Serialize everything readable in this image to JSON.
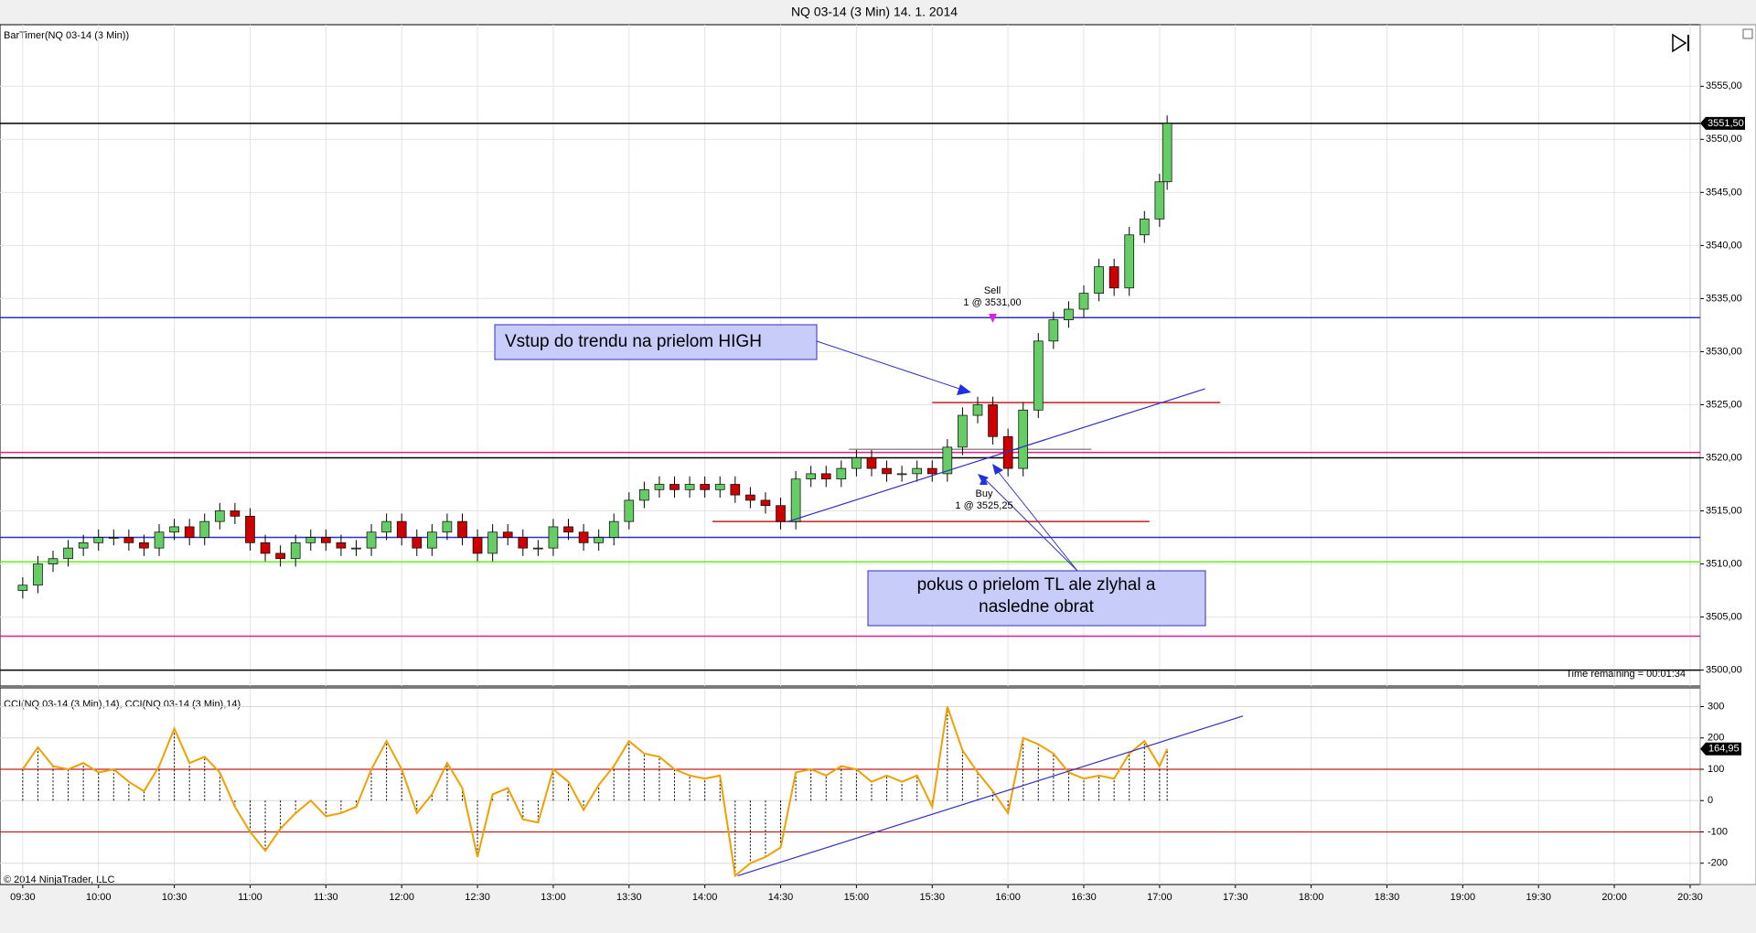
{
  "chart_data": {
    "type": "candlestick",
    "title": "NQ 03-14 (3 Min)  14. 1. 2014",
    "indicator_label": "BarTimer(NQ 03-14 (3 Min))",
    "time_remaining": "Time remaining = 00:01:34",
    "cci_label": "CCI(NQ 03-14 (3 Min),14), CCI(NQ 03-14 (3 Min),14)",
    "copyright": "© 2014 NinjaTrader, LLC",
    "up_color": "#66cc66",
    "down_color": "#cc0000",
    "x": [
      570,
      576,
      582,
      588,
      594,
      600,
      606,
      612,
      618,
      624,
      630,
      636,
      642,
      648,
      654,
      660,
      666,
      672,
      678,
      684,
      690,
      696,
      702,
      708,
      714,
      720,
      726,
      732,
      738,
      744,
      750,
      756,
      762,
      768,
      774,
      780,
      786,
      792,
      798,
      804,
      810,
      816,
      822,
      828,
      834,
      840,
      846,
      852,
      858,
      864,
      870,
      876,
      882,
      888,
      894,
      900,
      906,
      912,
      918,
      924,
      930,
      936,
      942,
      948,
      954,
      960,
      966,
      972,
      978,
      984,
      990,
      996,
      1002,
      1008,
      1014,
      1020,
      1023
    ],
    "open": [
      3507.5,
      3508,
      3510,
      3510.5,
      3511.5,
      3512,
      3512.5,
      3512.5,
      3512,
      3511.5,
      3513,
      3513.5,
      3512.5,
      3514,
      3515,
      3514.5,
      3512,
      3511,
      3510.5,
      3512,
      3512.5,
      3512,
      3511.5,
      3511.5,
      3513,
      3514,
      3512.5,
      3511.5,
      3513,
      3514,
      3512.5,
      3511,
      3513,
      3512.5,
      3511.5,
      3511.5,
      3513.5,
      3513,
      3512,
      3512.5,
      3514,
      3516,
      3517,
      3517.5,
      3517,
      3517.5,
      3517,
      3517.5,
      3516.5,
      3516,
      3515.5,
      3514,
      3518,
      3518.5,
      3518,
      3519,
      3520,
      3519,
      3518.5,
      3518.5,
      3519,
      3518.5,
      3521,
      3524,
      3525,
      3522,
      3519,
      3524.5,
      3531,
      3533,
      3534,
      3535.5,
      3538,
      3536,
      3541,
      3542.5,
      3546
    ],
    "high": [
      3508.75,
      3510.75,
      3511.25,
      3512.25,
      3512.75,
      3513.25,
      3513.25,
      3513.25,
      3512.75,
      3513.75,
      3514.25,
      3514.25,
      3514.75,
      3515.75,
      3515.75,
      3515.25,
      3512.75,
      3511.75,
      3512.75,
      3513.25,
      3513.25,
      3512.75,
      3512.25,
      3513.75,
      3514.75,
      3514.75,
      3513.25,
      3513.75,
      3514.75,
      3514.75,
      3513.25,
      3513.75,
      3513.75,
      3513.25,
      3512.25,
      3514.25,
      3514.25,
      3513.75,
      3513.25,
      3514.75,
      3516.75,
      3517.75,
      3518.25,
      3518.25,
      3518.25,
      3518.25,
      3518.25,
      3518.25,
      3517.25,
      3516.75,
      3516.25,
      3518.75,
      3519.25,
      3519.25,
      3519.75,
      3520.75,
      3520.75,
      3519.75,
      3519.25,
      3519.75,
      3519.75,
      3521.75,
      3524.75,
      3525.75,
      3525.75,
      3522.75,
      3525.25,
      3531.75,
      3533.75,
      3534.75,
      3536.25,
      3538.75,
      3538.75,
      3541.75,
      3543.25,
      3546.75,
      3552.25
    ],
    "low": [
      3506.75,
      3507.25,
      3509.25,
      3509.75,
      3510.75,
      3511.25,
      3511.75,
      3511.25,
      3510.75,
      3510.75,
      3512.25,
      3511.75,
      3511.75,
      3513.25,
      3513.75,
      3511.25,
      3510.25,
      3509.75,
      3509.75,
      3511.25,
      3511.25,
      3510.75,
      3510.75,
      3510.75,
      3512.25,
      3511.75,
      3510.75,
      3510.75,
      3512.25,
      3511.75,
      3510.25,
      3510.25,
      3511.75,
      3510.75,
      3510.75,
      3510.75,
      3512.25,
      3511.25,
      3511.25,
      3511.75,
      3513.25,
      3515.25,
      3516.25,
      3516.25,
      3516.25,
      3516.25,
      3516.25,
      3515.75,
      3515.25,
      3514.75,
      3513.25,
      3513.25,
      3517.25,
      3517.25,
      3517.25,
      3518.25,
      3518.25,
      3517.75,
      3517.75,
      3517.75,
      3517.75,
      3517.75,
      3520.25,
      3523.25,
      3521.25,
      3518.25,
      3518.25,
      3523.75,
      3530.25,
      3532.25,
      3533.25,
      3534.75,
      3535.25,
      3535.25,
      3540.25,
      3541.75,
      3545.25
    ],
    "close": [
      3508,
      3510,
      3510.5,
      3511.5,
      3512,
      3512.5,
      3512.5,
      3512,
      3511.5,
      3513,
      3513.5,
      3512.5,
      3514,
      3515,
      3514.5,
      3512,
      3511,
      3510.5,
      3512,
      3512.5,
      3512,
      3511.5,
      3511.5,
      3513,
      3514,
      3512.5,
      3511.5,
      3513,
      3514,
      3512.5,
      3511,
      3513,
      3512.5,
      3511.5,
      3511.5,
      3513.5,
      3513,
      3512,
      3512.5,
      3514,
      3516,
      3517,
      3517.5,
      3517,
      3517.5,
      3517,
      3517.5,
      3516.5,
      3516,
      3515.5,
      3514,
      3518,
      3518.5,
      3518,
      3519,
      3520,
      3519,
      3518.5,
      3518.5,
      3519,
      3518.5,
      3521,
      3524,
      3525,
      3522,
      3519,
      3524.5,
      3531,
      3533,
      3534,
      3535.5,
      3538,
      3536,
      3541,
      3542.5,
      3546,
      3551.5
    ],
    "cci": [
      100,
      170,
      110,
      100,
      120,
      90,
      100,
      60,
      30,
      110,
      230,
      120,
      140,
      90,
      -20,
      -100,
      -160,
      -90,
      -40,
      0,
      -50,
      -40,
      -20,
      100,
      190,
      100,
      -40,
      20,
      120,
      40,
      -180,
      20,
      40,
      -60,
      -70,
      100,
      60,
      -30,
      50,
      110,
      190,
      150,
      140,
      100,
      80,
      70,
      80,
      -240,
      -200,
      -180,
      -150,
      90,
      100,
      80,
      110,
      100,
      60,
      80,
      60,
      80,
      -20,
      300,
      160,
      90,
      30,
      -40,
      200,
      180,
      150,
      90,
      70,
      80,
      70,
      150,
      190,
      110,
      164.95
    ],
    "cci_color": "#f0a000",
    "xlim": [
      561,
      1234
    ],
    "xticks": [
      {
        "value": 570,
        "label": "09:30"
      },
      {
        "value": 600,
        "label": "10:00"
      },
      {
        "value": 630,
        "label": "10:30"
      },
      {
        "value": 660,
        "label": "11:00"
      },
      {
        "value": 690,
        "label": "11:30"
      },
      {
        "value": 720,
        "label": "12:00"
      },
      {
        "value": 750,
        "label": "12:30"
      },
      {
        "value": 780,
        "label": "13:00"
      },
      {
        "value": 810,
        "label": "13:30"
      },
      {
        "value": 840,
        "label": "14:00"
      },
      {
        "value": 870,
        "label": "14:30"
      },
      {
        "value": 900,
        "label": "15:00"
      },
      {
        "value": 930,
        "label": "15:30"
      },
      {
        "value": 960,
        "label": "16:00"
      },
      {
        "value": 990,
        "label": "16:30"
      },
      {
        "value": 1020,
        "label": "17:00"
      },
      {
        "value": 1050,
        "label": "17:30"
      },
      {
        "value": 1080,
        "label": "18:00"
      },
      {
        "value": 1110,
        "label": "18:30"
      },
      {
        "value": 1140,
        "label": "19:00"
      },
      {
        "value": 1170,
        "label": "19:30"
      },
      {
        "value": 1200,
        "label": "20:00"
      },
      {
        "value": 1230,
        "label": "20:30"
      }
    ],
    "ylim": [
      3498.5,
      3560.8
    ],
    "yticks": [
      {
        "value": 3500,
        "label": "3500,00"
      },
      {
        "value": 3505,
        "label": "3505,00"
      },
      {
        "value": 3510,
        "label": "3510,00"
      },
      {
        "value": 3515,
        "label": "3515,00"
      },
      {
        "value": 3520,
        "label": "3520,00"
      },
      {
        "value": 3525,
        "label": "3525,00"
      },
      {
        "value": 3530,
        "label": "3530,00"
      },
      {
        "value": 3535,
        "label": "3535,00"
      },
      {
        "value": 3540,
        "label": "3540,00"
      },
      {
        "value": 3545,
        "label": "3545,00"
      },
      {
        "value": 3550,
        "label": "3550,00"
      },
      {
        "value": 3555,
        "label": "3555,00"
      }
    ],
    "y2lim": [
      -268,
      357
    ],
    "y2ticks": [
      -200,
      -100,
      0,
      100,
      200,
      300
    ],
    "last_price": {
      "value": 3551.5,
      "label": "3551,50"
    },
    "last_cci": {
      "value": 164.95,
      "label": "164,95"
    },
    "hlines": [
      {
        "value": 3551.5,
        "color": "#000000"
      },
      {
        "value": 3533.2,
        "color": "#3030c0"
      },
      {
        "value": 3520.5,
        "color": "#e0208a"
      },
      {
        "value": 3520,
        "color": "#000000"
      },
      {
        "value": 3512.5,
        "color": "#3030c0"
      },
      {
        "value": 3510.2,
        "color": "#66ee22"
      },
      {
        "value": 3503.2,
        "color": "#e0208a"
      },
      {
        "value": 3500,
        "color": "#000000"
      }
    ],
    "segments": [
      {
        "x1": 930,
        "x2": 1044,
        "y": 3525.2,
        "color": "#c02020"
      },
      {
        "x1": 843,
        "x2": 1016,
        "y": 3514,
        "color": "#c02020"
      },
      {
        "x1": 897,
        "x2": 993,
        "y": 3520.8,
        "color": "#909090"
      }
    ],
    "trendline": {
      "x1": 873,
      "y1": 3514,
      "x2": 1038,
      "y2": 3526.5,
      "color": "#3030c0"
    },
    "cci_trendline": {
      "x1": 853,
      "y1": -240,
      "x2": 1053,
      "y2": 270,
      "color": "#3030c0"
    },
    "cci_levels": [
      {
        "value": 100,
        "color": "#c02020"
      },
      {
        "value": -100,
        "color": "#c02020"
      }
    ],
    "annotations": {
      "entry": "Vstup do trendu na prielom HIGH",
      "failed": "pokus o prielom TL ale zlyhal a nasledne obrat",
      "failed_line2": "nasledne obrat",
      "sell": "Sell",
      "sell_detail": "1 @ 3531,00",
      "buy": "Buy",
      "buy_detail": "1 @ 3525,25"
    }
  }
}
